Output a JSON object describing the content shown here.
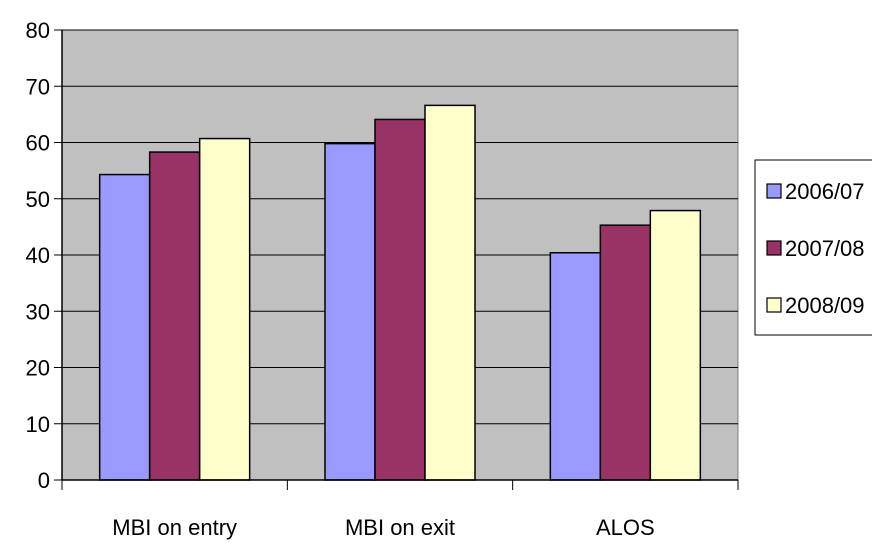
{
  "chart_data": {
    "type": "bar",
    "title": "",
    "xlabel": "",
    "ylabel": "",
    "categories": [
      "MBI on entry",
      "MBI on exit",
      "ALOS"
    ],
    "series": [
      {
        "name": "2006/07",
        "values": [
          54.3,
          59.8,
          40.4
        ],
        "color": "#9999ff"
      },
      {
        "name": "2007/08",
        "values": [
          58.3,
          64.1,
          45.3
        ],
        "color": "#993366"
      },
      {
        "name": "2008/09",
        "values": [
          60.7,
          66.6,
          47.9
        ],
        "color": "#ffffcc"
      }
    ],
    "ylim": [
      0,
      80
    ],
    "yticks": [
      0,
      10,
      20,
      30,
      40,
      50,
      60,
      70,
      80
    ],
    "grid": true,
    "plot_background": "#c0c0c0",
    "legend_position": "right"
  }
}
